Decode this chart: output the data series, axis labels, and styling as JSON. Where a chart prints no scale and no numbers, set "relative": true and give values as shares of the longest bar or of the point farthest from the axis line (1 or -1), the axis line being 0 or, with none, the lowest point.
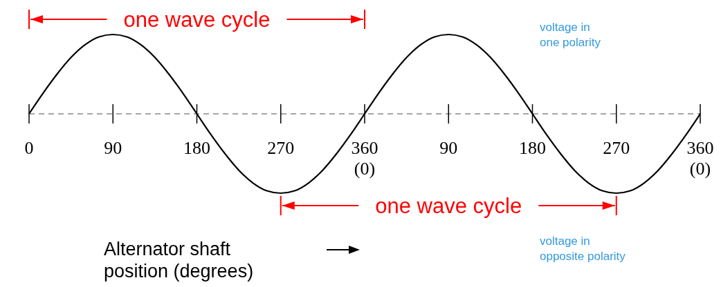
{
  "chart_data": {
    "type": "line",
    "relative": true,
    "categories": [
      "0",
      null,
      null,
      null,
      null,
      null,
      "90",
      null,
      null,
      null,
      null,
      null,
      "180",
      null,
      null,
      null,
      null,
      null,
      "270",
      null,
      null,
      null,
      null,
      null,
      "360\n(0)",
      null,
      null,
      null,
      null,
      null,
      "90",
      null,
      null,
      null,
      null,
      null,
      "180",
      null,
      null,
      null,
      null,
      null,
      "270",
      null,
      null,
      null,
      null,
      null,
      "360\n(0)"
    ],
    "series": [
      {
        "color": "#000000",
        "values": [
          0,
          0.26,
          0.5,
          0.71,
          0.87,
          0.97,
          1,
          0.97,
          0.87,
          0.71,
          0.5,
          0.26,
          0,
          -0.26,
          -0.5,
          -0.71,
          -0.87,
          -0.97,
          -1,
          -0.97,
          -0.87,
          -0.71,
          -0.5,
          -0.26,
          0,
          0.26,
          0.5,
          0.71,
          0.87,
          0.97,
          1,
          0.97,
          0.87,
          0.71,
          0.5,
          0.26,
          0,
          -0.26,
          -0.5,
          -0.71,
          -0.87,
          -0.97,
          -1,
          -0.97,
          -0.87,
          -0.71,
          -0.5,
          -0.26,
          0
        ]
      }
    ],
    "xlabel": "Alternator shaft position (degrees)",
    "ref_lines": [
      {
        "axis": "y",
        "value": 0,
        "color": "#888888",
        "line_style": "dashed"
      }
    ],
    "annotations": [
      "one wave cycle",
      "one wave cycle",
      "voltage in one polarity",
      "voltage in opposite polarity"
    ],
    "marker": "none",
    "line_style": "solid"
  }
}
